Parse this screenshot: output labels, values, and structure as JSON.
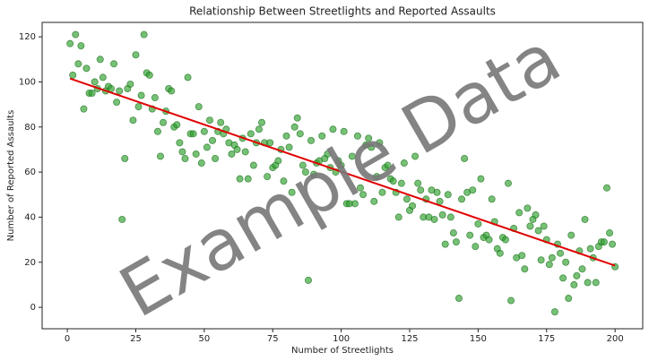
{
  "chart_data": {
    "type": "scatter",
    "title": "Relationship Between Streetlights and Reported Assaults",
    "xlabel": "Number of Streetlights",
    "ylabel": "Number of Reported Assaults",
    "watermark": "Example Data",
    "xlim": [
      -9.2,
      210.1
    ],
    "xticks": [
      0,
      25,
      50,
      75,
      100,
      125,
      150,
      175,
      200
    ],
    "ylim": [
      -9.5,
      126.4
    ],
    "yticks": [
      0,
      20,
      40,
      60,
      80,
      100,
      120
    ],
    "series": [
      {
        "color": "#2ca02c",
        "x": [
          1,
          2,
          3,
          4,
          5,
          6,
          7,
          8,
          9,
          10,
          11,
          12,
          13,
          14,
          15,
          16,
          17,
          18,
          19,
          20,
          21,
          22,
          23,
          24,
          25,
          26,
          27,
          28,
          29,
          30,
          31,
          32,
          33,
          34,
          35,
          36,
          37,
          38,
          39,
          40,
          41,
          42,
          43,
          44,
          45,
          46,
          47,
          48,
          49,
          50,
          51,
          52,
          53,
          54,
          55,
          56,
          57,
          58,
          59,
          60,
          61,
          62,
          63,
          64,
          65,
          66,
          67,
          68,
          69,
          70,
          71,
          72,
          73,
          74,
          75,
          76,
          77,
          78,
          79,
          80,
          81,
          82,
          83,
          84,
          85,
          86,
          87,
          88,
          89,
          90,
          91,
          92,
          93,
          94,
          95,
          96,
          97,
          98,
          99,
          100,
          101,
          102,
          103,
          104,
          105,
          106,
          107,
          108,
          109,
          110,
          111,
          112,
          113,
          114,
          115,
          116,
          117,
          118,
          119,
          120,
          121,
          122,
          123,
          124,
          125,
          126,
          127,
          128,
          129,
          130,
          131,
          132,
          133,
          134,
          135,
          136,
          137,
          138,
          139,
          140,
          141,
          142,
          143,
          144,
          145,
          146,
          147,
          148,
          149,
          150,
          151,
          152,
          153,
          154,
          155,
          156,
          157,
          158,
          159,
          160,
          161,
          162,
          163,
          164,
          165,
          166,
          167,
          168,
          169,
          170,
          171,
          172,
          173,
          174,
          175,
          176,
          177,
          178,
          179,
          180,
          181,
          182,
          183,
          184,
          185,
          186,
          187,
          188,
          189,
          190,
          191,
          192,
          193,
          194,
          195,
          196,
          197,
          198,
          199,
          200
        ],
        "values": [
          117,
          103,
          121,
          108,
          116,
          88,
          106,
          95,
          95,
          100,
          97,
          110,
          102,
          96,
          98,
          97,
          108,
          91,
          96,
          39,
          66,
          97,
          99,
          83,
          112,
          89,
          94,
          121,
          104,
          103,
          88,
          93,
          78,
          67,
          82,
          87,
          97,
          96,
          80,
          81,
          73,
          69,
          66,
          102,
          77,
          77,
          68,
          89,
          64,
          78,
          71,
          83,
          74,
          66,
          78,
          82,
          77,
          79,
          73,
          68,
          72,
          70,
          57,
          75,
          69,
          57,
          77,
          63,
          73,
          79,
          82,
          73,
          58,
          73,
          62,
          63,
          65,
          70,
          56,
          76,
          71,
          51,
          80,
          84,
          77,
          63,
          60,
          12,
          74,
          59,
          64,
          65,
          76,
          66,
          68,
          62,
          79,
          60,
          65,
          63,
          78,
          46,
          46,
          67,
          46,
          76,
          53,
          50,
          72,
          75,
          71,
          47,
          58,
          73,
          51,
          62,
          63,
          57,
          56,
          51,
          40,
          55,
          64,
          48,
          43,
          45,
          67,
          55,
          52,
          40,
          48,
          40,
          52,
          39,
          51,
          47,
          41,
          28,
          50,
          40,
          33,
          29,
          4,
          48,
          66,
          51,
          32,
          52,
          27,
          37,
          57,
          31,
          32,
          30,
          48,
          38,
          26,
          24,
          31,
          30,
          55,
          3,
          35,
          22,
          42,
          23,
          17,
          44,
          36,
          39,
          41,
          34,
          21,
          36,
          30,
          19,
          22,
          -2,
          28,
          24,
          13,
          20,
          4,
          32,
          10,
          14,
          25,
          17,
          39,
          11,
          26,
          22,
          11,
          27,
          29,
          29,
          53,
          33,
          28,
          18
        ]
      }
    ],
    "trend_line": {
      "color": "#e00000",
      "x": [
        1,
        200
      ],
      "values": [
        101.5,
        18.5
      ]
    }
  }
}
